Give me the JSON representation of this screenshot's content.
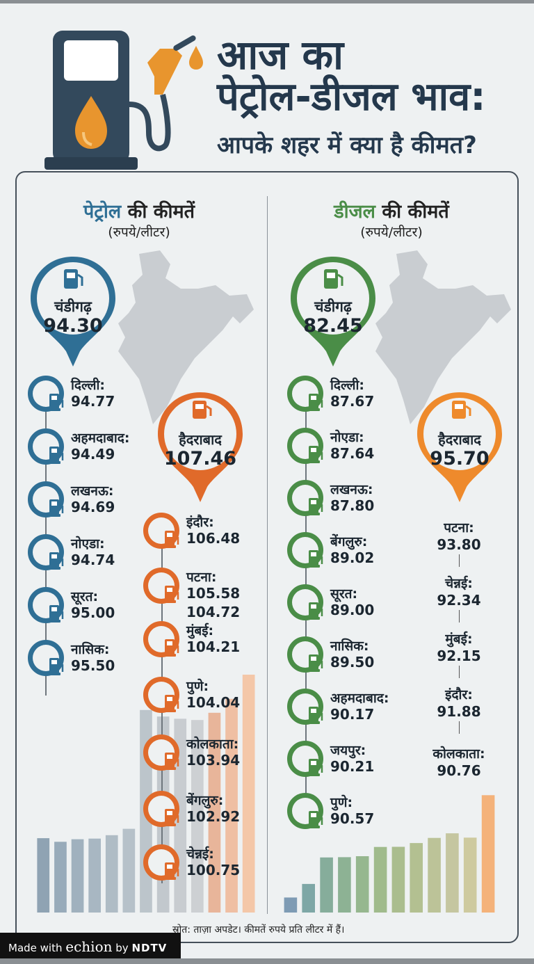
{
  "header": {
    "line1": "आज का",
    "line2": "पेट्रोल-डीजल भाव:",
    "line3": "आपके शहर में क्या है कीमत?"
  },
  "colors": {
    "petrol": "#2f6f95",
    "diesel": "#4a8d47",
    "highlight": "#e06a2a",
    "title": "#24384c"
  },
  "petrol": {
    "title_highlight": "पेट्रोल",
    "title_rest": " की कीमतें",
    "unit": "(रुपये/लीटर)",
    "lowest": {
      "city": "चंडीगढ़",
      "price": "94.30"
    },
    "highest": {
      "city": "हैदराबाद",
      "price": "107.46"
    },
    "left_list": [
      {
        "city": "दिल्ली:",
        "price": "94.77"
      },
      {
        "city": "अहमदाबाद:",
        "price": "94.49"
      },
      {
        "city": "लखनऊ:",
        "price": "94.69"
      },
      {
        "city": "नोएडा:",
        "price": "94.74"
      },
      {
        "city": "सूरत:",
        "price": "95.00"
      },
      {
        "city": "नासिक:",
        "price": "95.50"
      }
    ],
    "right_list": [
      {
        "city": "इंदौर:",
        "price": "106.48"
      },
      {
        "city": "पटना:",
        "price": "105.58",
        "extra": "104.72"
      },
      {
        "city": "मुंबई:",
        "price": "104.21"
      },
      {
        "city": "पुणे:",
        "price": "104.04"
      },
      {
        "city": "कोलकाता:",
        "price": "103.94"
      },
      {
        "city": "बेंगलुरु:",
        "price": "102.92"
      },
      {
        "city": "चेन्नई:",
        "price": "100.75"
      }
    ],
    "bars": [
      94.77,
      94.49,
      94.69,
      94.74,
      95.0,
      95.5,
      104.72,
      104.21,
      104.04,
      103.94,
      104.5,
      105.58,
      107.46
    ]
  },
  "diesel": {
    "title_highlight": "डीजल",
    "title_rest": " की कीमतें",
    "unit": "(रुपये/लीटर)",
    "lowest": {
      "city": "चंडीगढ़",
      "price": "82.45"
    },
    "highest": {
      "city": "हैदराबाद",
      "price": "95.70"
    },
    "left_list": [
      {
        "city": "दिल्ली:",
        "price": "87.67"
      },
      {
        "city": "नोएडा:",
        "price": "87.64"
      },
      {
        "city": "लखनऊ:",
        "price": "87.80"
      },
      {
        "city": "बेंगलुरु:",
        "price": "89.02"
      },
      {
        "city": "सूरत:",
        "price": "89.00"
      },
      {
        "city": "नासिक:",
        "price": "89.50"
      },
      {
        "city": "अहमदाबाद:",
        "price": "90.17"
      },
      {
        "city": "जयपुर:",
        "price": "90.21"
      },
      {
        "city": "पुणे:",
        "price": "90.57"
      }
    ],
    "right_list": [
      {
        "city": "पटना:",
        "price": "93.80"
      },
      {
        "city": "चेन्नई:",
        "price": "92.34"
      },
      {
        "city": "मुंबई:",
        "price": "92.15"
      },
      {
        "city": "इंदौर:",
        "price": "91.88"
      },
      {
        "city": "कोलकाता:",
        "price": "90.76"
      }
    ],
    "bars": [
      82.45,
      84.2,
      87.64,
      87.67,
      87.8,
      89.0,
      89.02,
      89.5,
      90.17,
      90.76,
      90.21,
      95.7
    ]
  },
  "footer": {
    "source": "स्रोत: ताज़ा अपडेट। कीमतें रुपये प्रति लीटर में हैं।",
    "brand_made": "Made with ",
    "brand_echion": "echion",
    "brand_by": " by ",
    "brand_ndtv": "NDTV"
  }
}
